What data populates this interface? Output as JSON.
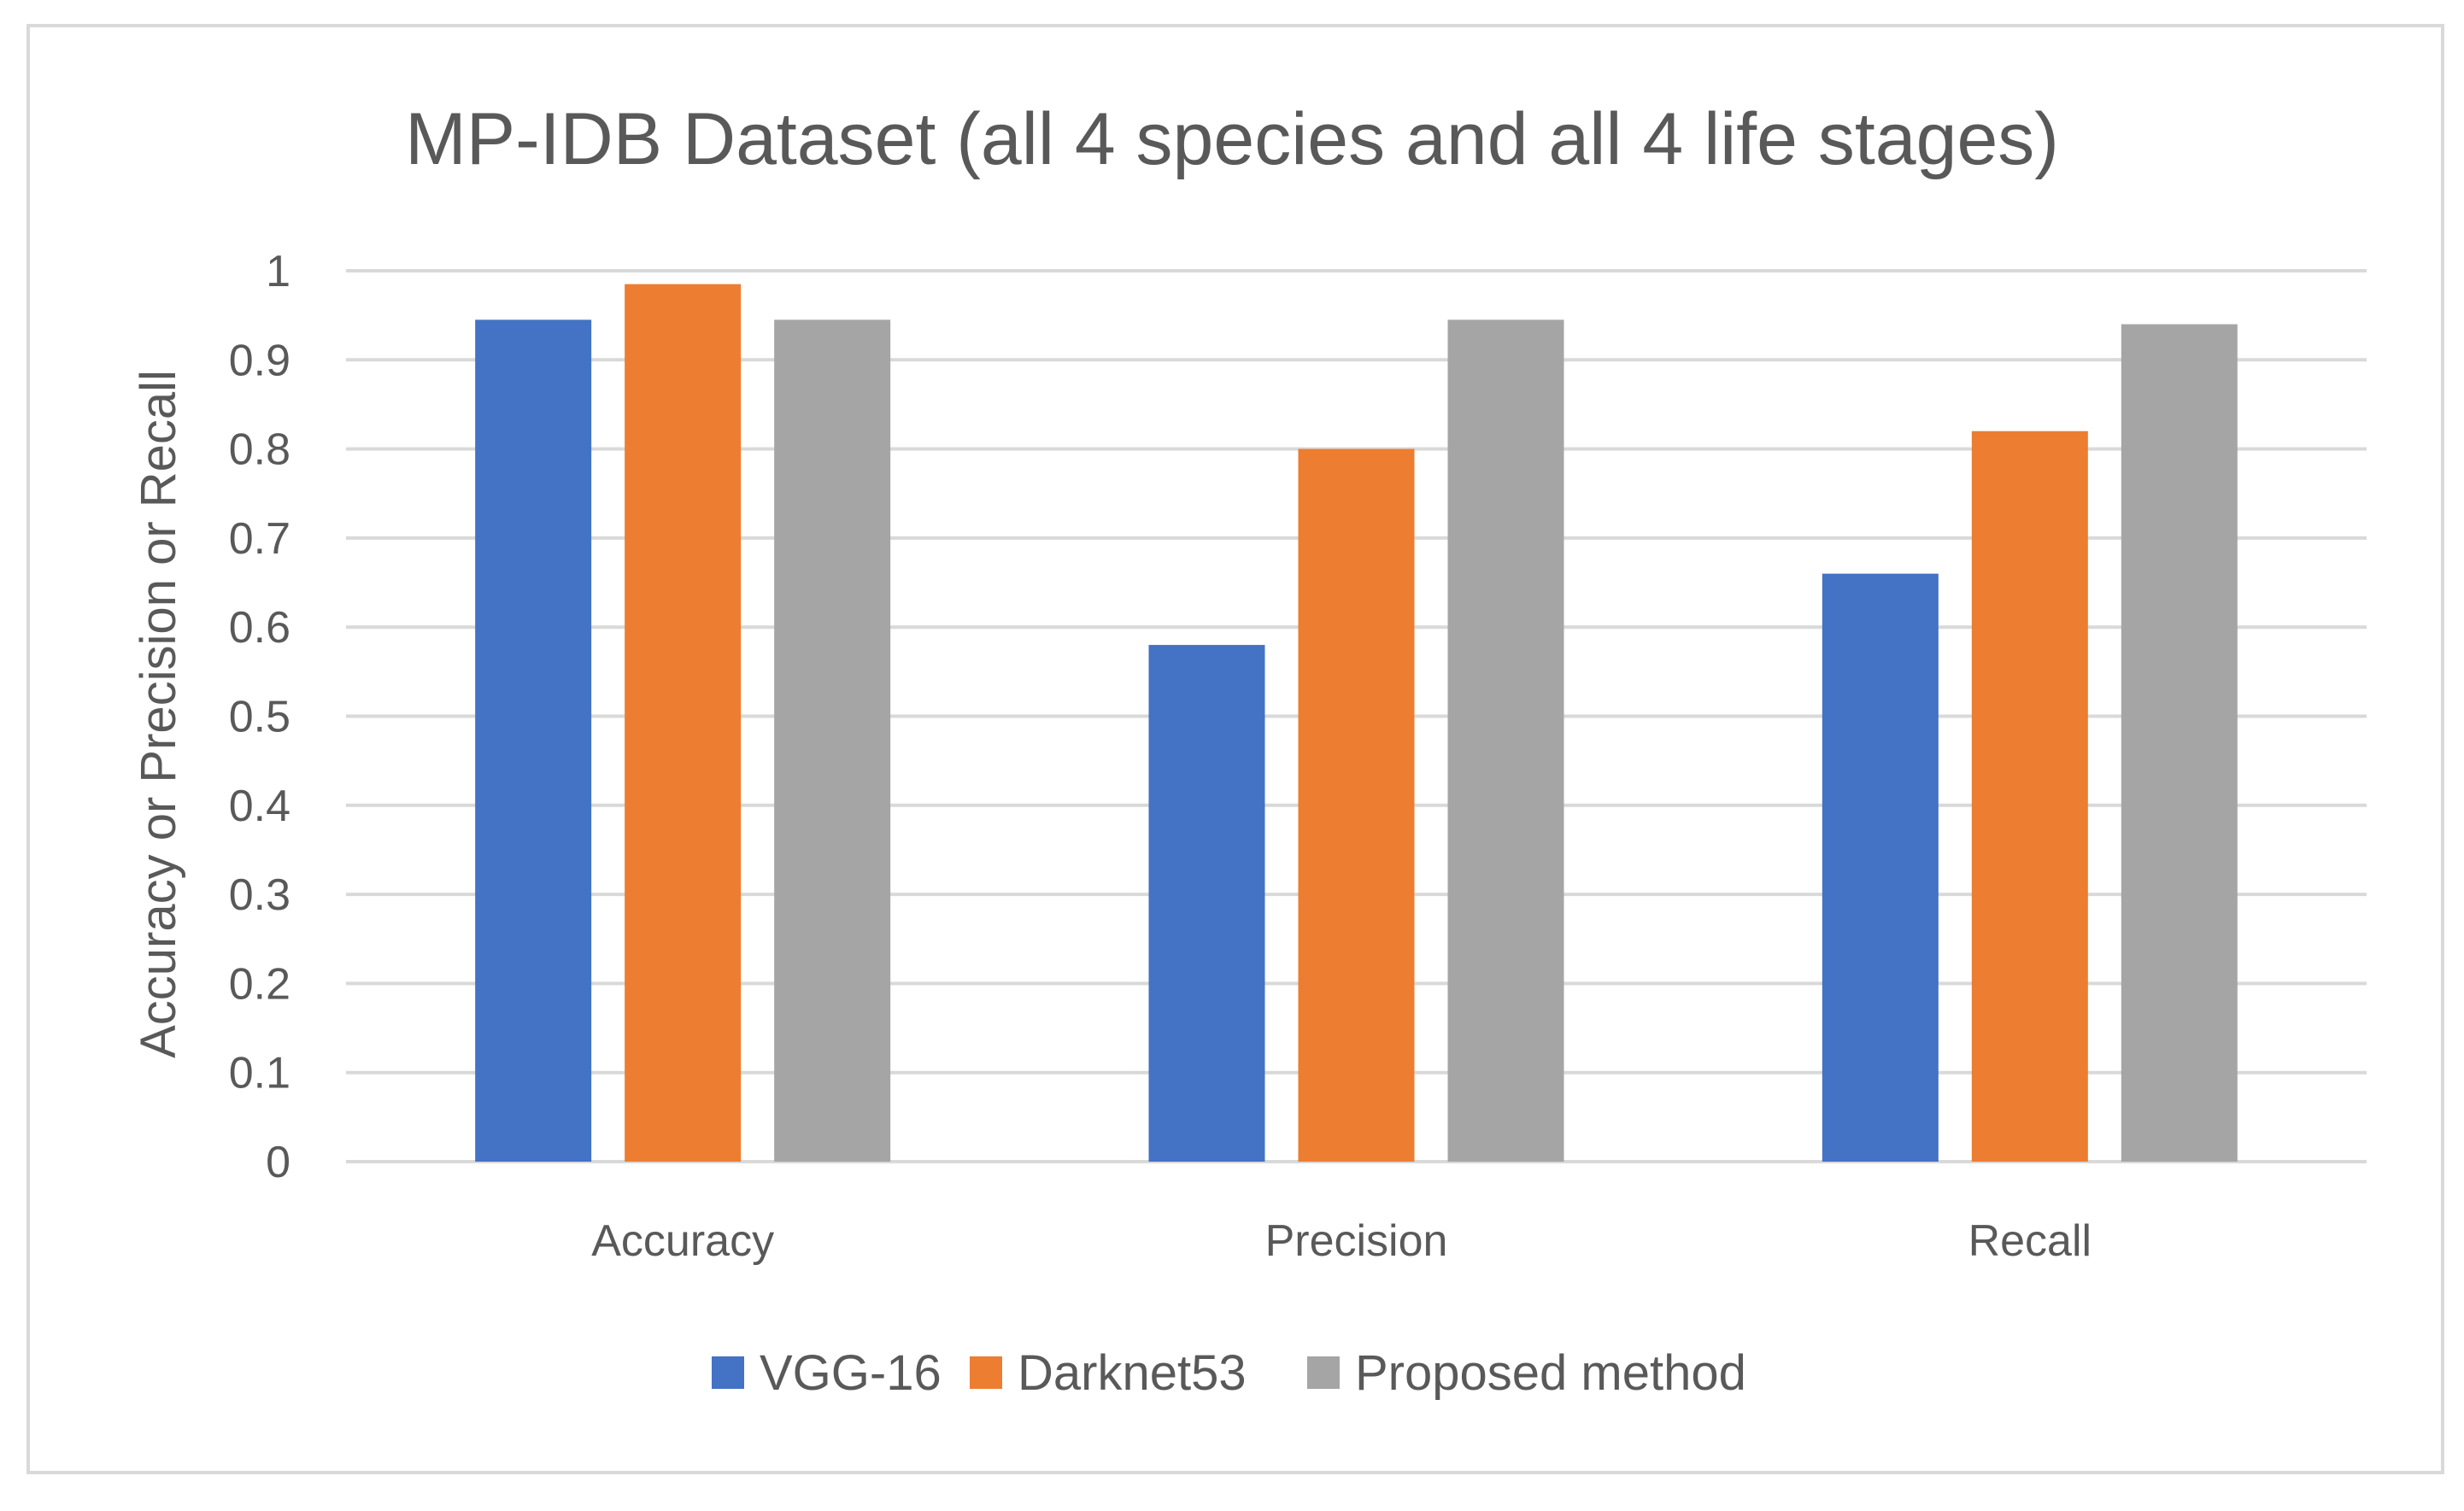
{
  "chart_data": {
    "type": "bar",
    "title": "MP-IDB Dataset (all 4 species and all 4 life stages)",
    "xlabel": "",
    "ylabel": "Accuracy or Precision or Recall",
    "categories": [
      "Accuracy",
      "Precision",
      "Recall"
    ],
    "series": [
      {
        "name": "VGG-16",
        "color": "#4472C4",
        "values": [
          0.945,
          0.58,
          0.66
        ]
      },
      {
        "name": "Darknet53",
        "color": "#ED7D31",
        "values": [
          0.985,
          0.8,
          0.82
        ]
      },
      {
        "name": "Proposed method",
        "color": "#A5A5A5",
        "values": [
          0.945,
          0.945,
          0.94
        ]
      }
    ],
    "ylim": [
      0,
      1
    ],
    "yticks": [
      "0",
      "0.1",
      "0.2",
      "0.3",
      "0.4",
      "0.5",
      "0.6",
      "0.7",
      "0.8",
      "0.9",
      "1"
    ],
    "grid": true,
    "legend_position": "bottom"
  }
}
